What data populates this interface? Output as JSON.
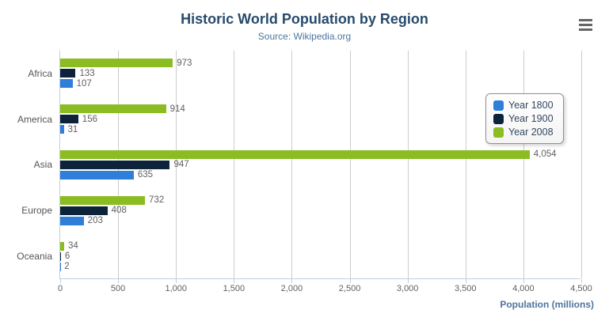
{
  "header": {
    "title": "Historic World Population by Region",
    "subtitle": "Source: Wikipedia.org"
  },
  "context_menu": {
    "icon": "hamburger-icon",
    "color": "#666666"
  },
  "chart_data": {
    "type": "bar",
    "orientation": "horizontal",
    "title": "Historic World Population by Region",
    "subtitle": "Source: Wikipedia.org",
    "categories": [
      "Africa",
      "America",
      "Asia",
      "Europe",
      "Oceania"
    ],
    "series": [
      {
        "name": "Year 1800",
        "color": "#2f7ed8",
        "values": [
          107,
          31,
          635,
          203,
          2
        ]
      },
      {
        "name": "Year 1900",
        "color": "#0d233a",
        "values": [
          133,
          156,
          947,
          408,
          6
        ]
      },
      {
        "name": "Year 2008",
        "color": "#8bbc21",
        "values": [
          973,
          914,
          4054,
          732,
          34
        ]
      }
    ],
    "bar_order_top_to_bottom": [
      "Year 2008",
      "Year 1900",
      "Year 1800"
    ],
    "xlabel": "Population (millions)",
    "ylabel": "",
    "xlim": [
      0,
      4500
    ],
    "x_ticks": [
      0,
      500,
      1000,
      1500,
      2000,
      2500,
      3000,
      3500,
      4000,
      4500
    ],
    "grid": true,
    "data_labels": true,
    "legend_position": "right-overlay",
    "colors": {
      "title": "#274b6d",
      "subtitle": "#4d759e",
      "axis_line": "#C0D0E0",
      "gridline": "#CCCCCC",
      "tick_label": "#606060",
      "category_label": "#555555",
      "data_label": "#606060",
      "axis_title": "#4d759e",
      "legend_text": "#33475f"
    }
  }
}
